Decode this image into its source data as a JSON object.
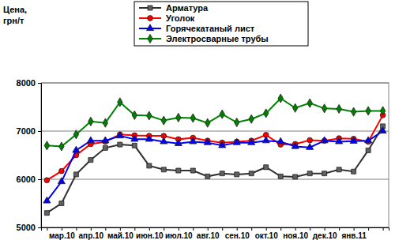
{
  "chart_data": {
    "type": "line",
    "y_label": "Цена, грн/т",
    "categories": [
      null,
      "мар.10",
      null,
      "апр.10",
      null,
      "май.10",
      null,
      "июн.10",
      null,
      "июл.10",
      null,
      "авг.10",
      null,
      "сен.10",
      null,
      "окт.10",
      null,
      "ноя.10",
      null,
      "дек.10",
      null,
      "янв.11",
      null,
      null
    ],
    "series": [
      {
        "name": "Арматура",
        "color": "#606060",
        "marker": "square",
        "values": [
          5300,
          5500,
          6100,
          6400,
          6650,
          6720,
          6700,
          6280,
          6200,
          6180,
          6180,
          6060,
          6120,
          6100,
          6120,
          6250,
          6060,
          6050,
          6120,
          6120,
          6200,
          6160,
          6600,
          7100
        ]
      },
      {
        "name": "Уголок",
        "color": "#ff0000",
        "marker": "circle",
        "values": [
          5980,
          6170,
          6500,
          6730,
          6780,
          6930,
          6910,
          6900,
          6900,
          6830,
          6860,
          6800,
          6760,
          6780,
          6800,
          6920,
          6720,
          6730,
          6810,
          6800,
          6850,
          6840,
          6780,
          7330
        ]
      },
      {
        "name": "Горячекатаный лист",
        "color": "#0000ff",
        "marker": "triangle",
        "values": [
          5550,
          5950,
          6600,
          6800,
          6800,
          6900,
          6830,
          6830,
          6780,
          6740,
          6780,
          6760,
          6700,
          6760,
          6760,
          6800,
          6780,
          6680,
          6660,
          6800,
          6780,
          6790,
          6800,
          7000
        ]
      },
      {
        "name": "Электросварные трубы",
        "color": "#008000",
        "marker": "diamond",
        "values": [
          6700,
          6680,
          6930,
          7200,
          7170,
          7600,
          7330,
          7320,
          7220,
          7280,
          7270,
          7170,
          7350,
          7180,
          7250,
          7370,
          7680,
          7480,
          7580,
          7470,
          7460,
          7400,
          7420,
          7420
        ]
      }
    ],
    "ylim": [
      5000,
      8000
    ],
    "yticks": [
      5000,
      6000,
      7000,
      8000
    ],
    "grid": true,
    "legend": "top"
  }
}
